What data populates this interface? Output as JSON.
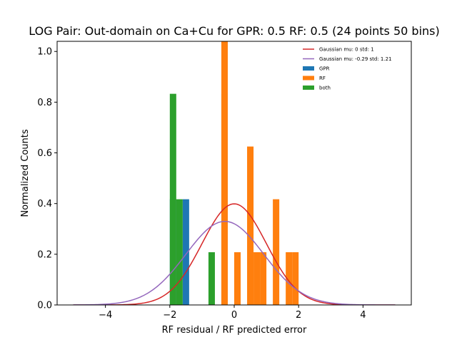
{
  "chart_data": {
    "type": "bar",
    "title": "LOG Pair: Out-domain on Ca+Cu for GPR: 0.5 RF: 0.5 (24 points 50 bins)",
    "xlabel": "RF residual / RF predicted error",
    "ylabel": "Normalized Counts",
    "xlim": [
      -5.5,
      5.5
    ],
    "ylim": [
      0,
      1.04
    ],
    "xticks": [
      -4,
      -2,
      0,
      2,
      4
    ],
    "yticks": [
      0.0,
      0.2,
      0.4,
      0.6,
      0.8,
      1.0
    ],
    "xtick_labels": [
      "−4",
      "−2",
      "0",
      "2",
      "4"
    ],
    "ytick_labels": [
      "0.0",
      "0.2",
      "0.4",
      "0.6",
      "0.8",
      "1.0"
    ],
    "bin_width": 0.2,
    "legend_position": "top-right",
    "series": [
      {
        "name": "GPR",
        "color": "#1f77b4",
        "bars": [
          {
            "x": -1.9,
            "value": 0.417
          },
          {
            "x": -1.5,
            "value": 0.417
          },
          {
            "x": -0.3,
            "value": 0.833
          }
        ]
      },
      {
        "name": "RF",
        "color": "#ff7f0e",
        "bars": [
          {
            "x": -0.3,
            "value": 1.06
          },
          {
            "x": 0.1,
            "value": 0.208
          },
          {
            "x": 0.5,
            "value": 0.625
          },
          {
            "x": 0.7,
            "value": 0.208
          },
          {
            "x": 0.9,
            "value": 0.208
          },
          {
            "x": 1.3,
            "value": 0.417
          },
          {
            "x": 1.7,
            "value": 0.208
          },
          {
            "x": 1.9,
            "value": 0.208
          }
        ]
      },
      {
        "name": "both",
        "color": "#2ca02c",
        "bars": [
          {
            "x": -1.9,
            "value": 0.833
          },
          {
            "x": -1.7,
            "value": 0.417
          },
          {
            "x": -0.7,
            "value": 0.208
          }
        ]
      }
    ],
    "curves": [
      {
        "name": "Gaussian mu: 0 std: 1",
        "color": "#d62728",
        "mu": 0,
        "std": 1,
        "x_range": [
          -5,
          5
        ]
      },
      {
        "name": "Gaussian mu: -0.29 std: 1.21",
        "color": "#9467bd",
        "mu": -0.29,
        "std": 1.21,
        "x_range": [
          -5,
          5
        ]
      }
    ],
    "legend": [
      {
        "label": "Gaussian mu: 0 std: 1",
        "kind": "line",
        "color": "#d62728"
      },
      {
        "label": "Gaussian mu: -0.29 std: 1.21",
        "kind": "line",
        "color": "#9467bd"
      },
      {
        "label": "GPR",
        "kind": "patch",
        "color": "#1f77b4"
      },
      {
        "label": "RF",
        "kind": "patch",
        "color": "#ff7f0e"
      },
      {
        "label": "both",
        "kind": "patch",
        "color": "#2ca02c"
      }
    ]
  }
}
